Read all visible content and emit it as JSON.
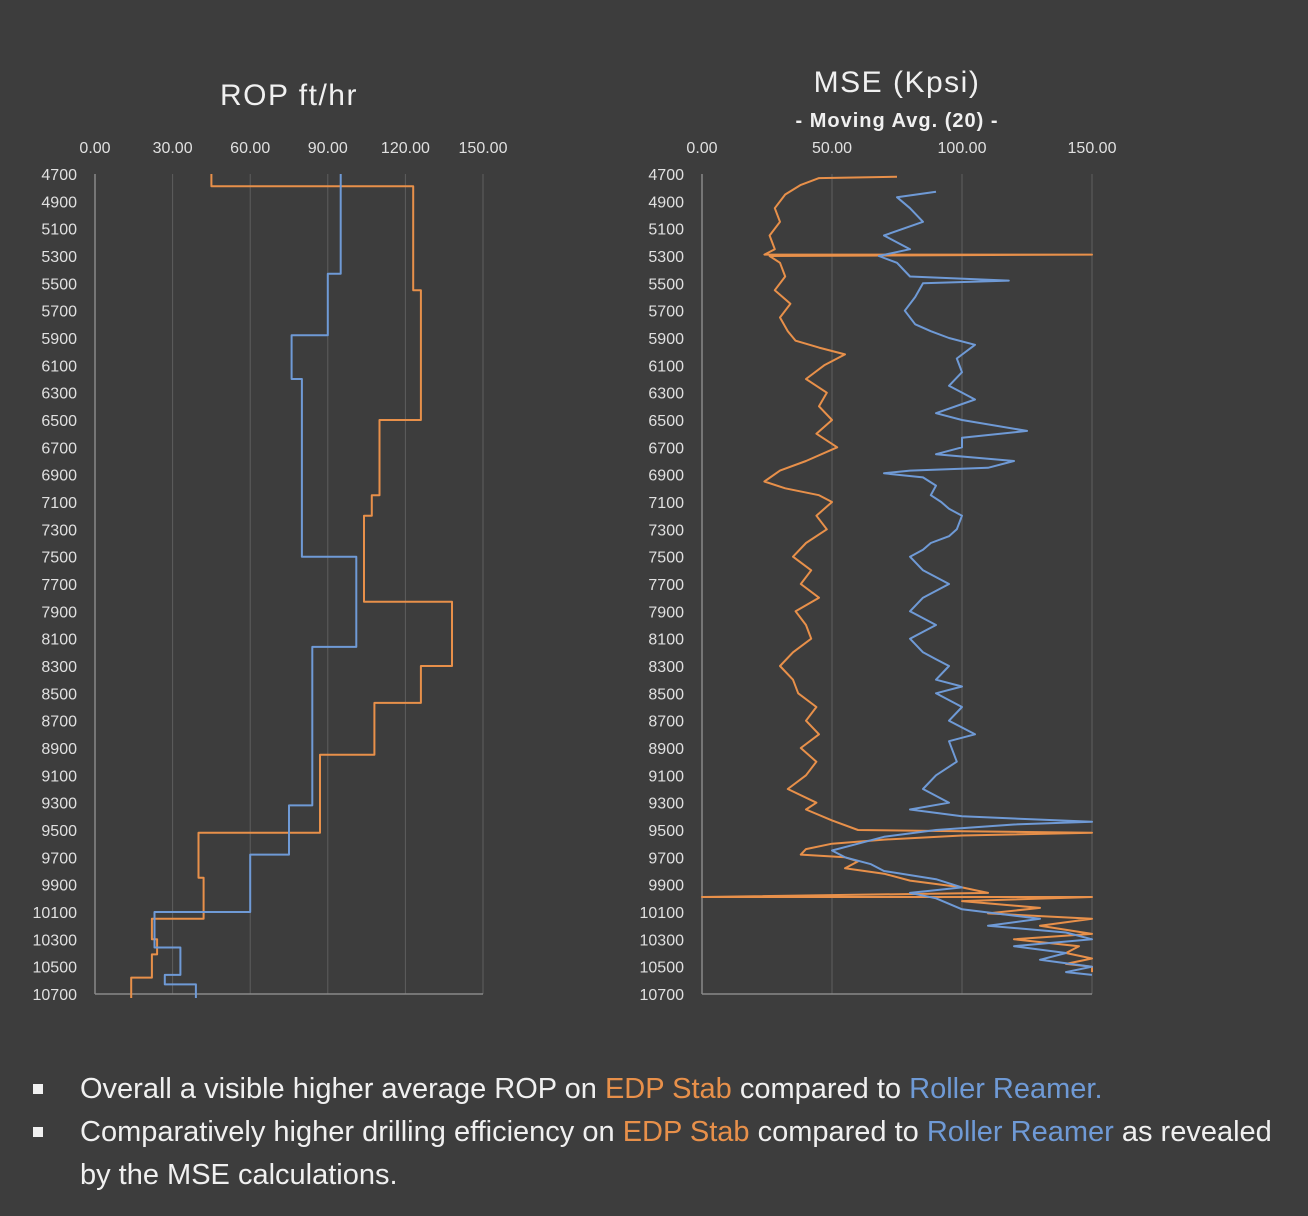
{
  "colors": {
    "background": "#3d3d3d",
    "edp_stab": "#e8904a",
    "roller_reamer": "#6f9ad6",
    "grid": "#5e5e5e",
    "axis_text": "#e0e0e0"
  },
  "chart_data": [
    {
      "id": "rop",
      "type": "line",
      "title": "ROP ft/hr",
      "subtitle": "",
      "xlabel": "",
      "ylabel": "",
      "xlim": [
        0,
        150
      ],
      "ylim": [
        4700,
        10700
      ],
      "y_inverted": true,
      "x_ticks": [
        "0.00",
        "30.00",
        "60.00",
        "90.00",
        "120.00",
        "150.00"
      ],
      "y_ticks": [
        4700,
        4900,
        5100,
        5300,
        5500,
        5700,
        5900,
        6100,
        6300,
        6500,
        6700,
        6900,
        7100,
        7300,
        7500,
        7700,
        7900,
        8100,
        8300,
        8500,
        8700,
        8900,
        9100,
        9300,
        9500,
        9700,
        9900,
        10100,
        10300,
        10500,
        10700
      ],
      "grid": true,
      "series": [
        {
          "name": "EDP Stab",
          "color": "#e8904a",
          "points": [
            [
              45,
              4700
            ],
            [
              45,
              4790
            ],
            [
              123,
              4790
            ],
            [
              123,
              5550
            ],
            [
              126,
              5550
            ],
            [
              126,
              6500
            ],
            [
              110,
              6500
            ],
            [
              110,
              7050
            ],
            [
              107,
              7050
            ],
            [
              107,
              7200
            ],
            [
              104,
              7200
            ],
            [
              104,
              7830
            ],
            [
              138,
              7830
            ],
            [
              138,
              8300
            ],
            [
              126,
              8300
            ],
            [
              126,
              8570
            ],
            [
              108,
              8570
            ],
            [
              108,
              8950
            ],
            [
              87,
              8950
            ],
            [
              87,
              9520
            ],
            [
              40,
              9520
            ],
            [
              40,
              9850
            ],
            [
              42,
              9850
            ],
            [
              42,
              10150
            ],
            [
              22,
              10150
            ],
            [
              22,
              10300
            ],
            [
              24,
              10300
            ],
            [
              24,
              10410
            ],
            [
              22,
              10410
            ],
            [
              22,
              10580
            ],
            [
              14,
              10580
            ],
            [
              14,
              10730
            ]
          ]
        },
        {
          "name": "Roller Reamer",
          "color": "#6f9ad6",
          "points": [
            [
              95,
              4700
            ],
            [
              95,
              5430
            ],
            [
              90,
              5430
            ],
            [
              90,
              5880
            ],
            [
              76,
              5880
            ],
            [
              76,
              6200
            ],
            [
              80,
              6200
            ],
            [
              80,
              7500
            ],
            [
              101,
              7500
            ],
            [
              101,
              8160
            ],
            [
              84,
              8160
            ],
            [
              84,
              9320
            ],
            [
              75,
              9320
            ],
            [
              75,
              9680
            ],
            [
              60,
              9680
            ],
            [
              60,
              10100
            ],
            [
              23,
              10100
            ],
            [
              23,
              10360
            ],
            [
              33,
              10360
            ],
            [
              33,
              10560
            ],
            [
              27,
              10560
            ],
            [
              27,
              10630
            ],
            [
              39,
              10630
            ],
            [
              39,
              10730
            ]
          ]
        }
      ]
    },
    {
      "id": "mse",
      "type": "line",
      "title": "MSE (Kpsi)",
      "subtitle": "- Moving Avg. (20) -",
      "xlabel": "",
      "ylabel": "",
      "xlim": [
        0,
        150
      ],
      "ylim": [
        4700,
        10700
      ],
      "y_inverted": true,
      "x_ticks": [
        "0.00",
        "50.00",
        "100.00",
        "150.00"
      ],
      "y_ticks": [
        4700,
        4900,
        5100,
        5300,
        5500,
        5700,
        5900,
        6100,
        6300,
        6500,
        6700,
        6900,
        7100,
        7300,
        7500,
        7700,
        7900,
        8100,
        8300,
        8500,
        8700,
        8900,
        9100,
        9300,
        9500,
        9700,
        9900,
        10100,
        10300,
        10500,
        10700
      ],
      "grid": true,
      "series": [
        {
          "name": "EDP Stab",
          "color": "#e8904a",
          "points": [
            [
              75,
              4720
            ],
            [
              45,
              4730
            ],
            [
              38,
              4780
            ],
            [
              32,
              4850
            ],
            [
              28,
              4950
            ],
            [
              30,
              5050
            ],
            [
              26,
              5150
            ],
            [
              28,
              5250
            ],
            [
              24,
              5290
            ],
            [
              150,
              5290
            ],
            [
              26,
              5300
            ],
            [
              30,
              5350
            ],
            [
              32,
              5450
            ],
            [
              28,
              5550
            ],
            [
              34,
              5650
            ],
            [
              30,
              5750
            ],
            [
              33,
              5850
            ],
            [
              36,
              5920
            ],
            [
              45,
              5970
            ],
            [
              55,
              6020
            ],
            [
              47,
              6100
            ],
            [
              40,
              6200
            ],
            [
              48,
              6300
            ],
            [
              45,
              6400
            ],
            [
              50,
              6500
            ],
            [
              44,
              6600
            ],
            [
              52,
              6700
            ],
            [
              40,
              6800
            ],
            [
              30,
              6870
            ],
            [
              24,
              6950
            ],
            [
              32,
              7000
            ],
            [
              45,
              7050
            ],
            [
              50,
              7100
            ],
            [
              44,
              7200
            ],
            [
              48,
              7300
            ],
            [
              40,
              7400
            ],
            [
              35,
              7500
            ],
            [
              42,
              7600
            ],
            [
              38,
              7700
            ],
            [
              45,
              7800
            ],
            [
              36,
              7900
            ],
            [
              40,
              8000
            ],
            [
              42,
              8100
            ],
            [
              35,
              8200
            ],
            [
              30,
              8300
            ],
            [
              35,
              8400
            ],
            [
              37,
              8500
            ],
            [
              44,
              8600
            ],
            [
              40,
              8700
            ],
            [
              45,
              8800
            ],
            [
              38,
              8900
            ],
            [
              44,
              9000
            ],
            [
              40,
              9100
            ],
            [
              33,
              9200
            ],
            [
              44,
              9300
            ],
            [
              40,
              9350
            ],
            [
              50,
              9430
            ],
            [
              60,
              9500
            ],
            [
              150,
              9520
            ],
            [
              100,
              9540
            ],
            [
              70,
              9570
            ],
            [
              50,
              9600
            ],
            [
              40,
              9640
            ],
            [
              38,
              9680
            ],
            [
              55,
              9700
            ],
            [
              60,
              9730
            ],
            [
              55,
              9780
            ],
            [
              70,
              9820
            ],
            [
              80,
              9870
            ],
            [
              100,
              9920
            ],
            [
              110,
              9960
            ],
            [
              0,
              9990
            ],
            [
              150,
              9990
            ],
            [
              100,
              10020
            ],
            [
              130,
              10070
            ],
            [
              110,
              10110
            ],
            [
              150,
              10150
            ],
            [
              130,
              10200
            ],
            [
              150,
              10260
            ],
            [
              120,
              10300
            ],
            [
              145,
              10350
            ],
            [
              140,
              10400
            ],
            [
              150,
              10440
            ],
            [
              140,
              10480
            ],
            [
              150,
              10500
            ],
            [
              150,
              10540
            ]
          ]
        },
        {
          "name": "Roller Reamer",
          "color": "#6f9ad6",
          "points": [
            [
              90,
              4830
            ],
            [
              75,
              4870
            ],
            [
              80,
              4950
            ],
            [
              85,
              5050
            ],
            [
              70,
              5150
            ],
            [
              80,
              5250
            ],
            [
              68,
              5300
            ],
            [
              75,
              5350
            ],
            [
              80,
              5450
            ],
            [
              118,
              5480
            ],
            [
              85,
              5500
            ],
            [
              82,
              5600
            ],
            [
              78,
              5700
            ],
            [
              82,
              5800
            ],
            [
              88,
              5850
            ],
            [
              95,
              5900
            ],
            [
              105,
              5950
            ],
            [
              98,
              6050
            ],
            [
              100,
              6150
            ],
            [
              95,
              6250
            ],
            [
              105,
              6350
            ],
            [
              90,
              6450
            ],
            [
              100,
              6500
            ],
            [
              125,
              6580
            ],
            [
              100,
              6630
            ],
            [
              100,
              6700
            ],
            [
              90,
              6750
            ],
            [
              120,
              6800
            ],
            [
              110,
              6850
            ],
            [
              80,
              6870
            ],
            [
              70,
              6890
            ],
            [
              85,
              6920
            ],
            [
              90,
              6980
            ],
            [
              88,
              7050
            ],
            [
              92,
              7100
            ],
            [
              95,
              7150
            ],
            [
              100,
              7200
            ],
            [
              98,
              7300
            ],
            [
              95,
              7350
            ],
            [
              88,
              7400
            ],
            [
              85,
              7450
            ],
            [
              80,
              7500
            ],
            [
              85,
              7600
            ],
            [
              95,
              7700
            ],
            [
              85,
              7800
            ],
            [
              80,
              7900
            ],
            [
              90,
              8000
            ],
            [
              80,
              8100
            ],
            [
              85,
              8200
            ],
            [
              90,
              8250
            ],
            [
              95,
              8300
            ],
            [
              90,
              8400
            ],
            [
              100,
              8450
            ],
            [
              90,
              8500
            ],
            [
              100,
              8600
            ],
            [
              95,
              8700
            ],
            [
              105,
              8800
            ],
            [
              95,
              8850
            ],
            [
              98,
              9000
            ],
            [
              90,
              9100
            ],
            [
              85,
              9200
            ],
            [
              95,
              9300
            ],
            [
              80,
              9350
            ],
            [
              100,
              9400
            ],
            [
              150,
              9440
            ],
            [
              120,
              9460
            ],
            [
              90,
              9500
            ],
            [
              70,
              9550
            ],
            [
              60,
              9600
            ],
            [
              50,
              9650
            ],
            [
              55,
              9700
            ],
            [
              65,
              9750
            ],
            [
              70,
              9800
            ],
            [
              90,
              9860
            ],
            [
              100,
              9920
            ],
            [
              80,
              9960
            ],
            [
              90,
              10000
            ],
            [
              100,
              10080
            ],
            [
              130,
              10150
            ],
            [
              110,
              10200
            ],
            [
              140,
              10250
            ],
            [
              150,
              10300
            ],
            [
              120,
              10350
            ],
            [
              140,
              10400
            ],
            [
              130,
              10450
            ],
            [
              150,
              10500
            ],
            [
              140,
              10540
            ],
            [
              150,
              10560
            ]
          ]
        }
      ]
    }
  ],
  "bullets": [
    {
      "parts": [
        {
          "text": "Overall a visible higher average ROP on ",
          "style": "plain"
        },
        {
          "text": "EDP Stab",
          "style": "orange"
        },
        {
          "text": " compared to ",
          "style": "plain"
        },
        {
          "text": "Roller Reamer.",
          "style": "blue"
        }
      ]
    },
    {
      "parts": [
        {
          "text": "Comparatively higher drilling efficiency on ",
          "style": "plain"
        },
        {
          "text": "EDP Stab",
          "style": "orange"
        },
        {
          "text": " compared to ",
          "style": "plain"
        },
        {
          "text": "Roller Reamer",
          "style": "blue"
        },
        {
          "text": " as revealed by the MSE calculations.",
          "style": "plain"
        }
      ]
    }
  ]
}
